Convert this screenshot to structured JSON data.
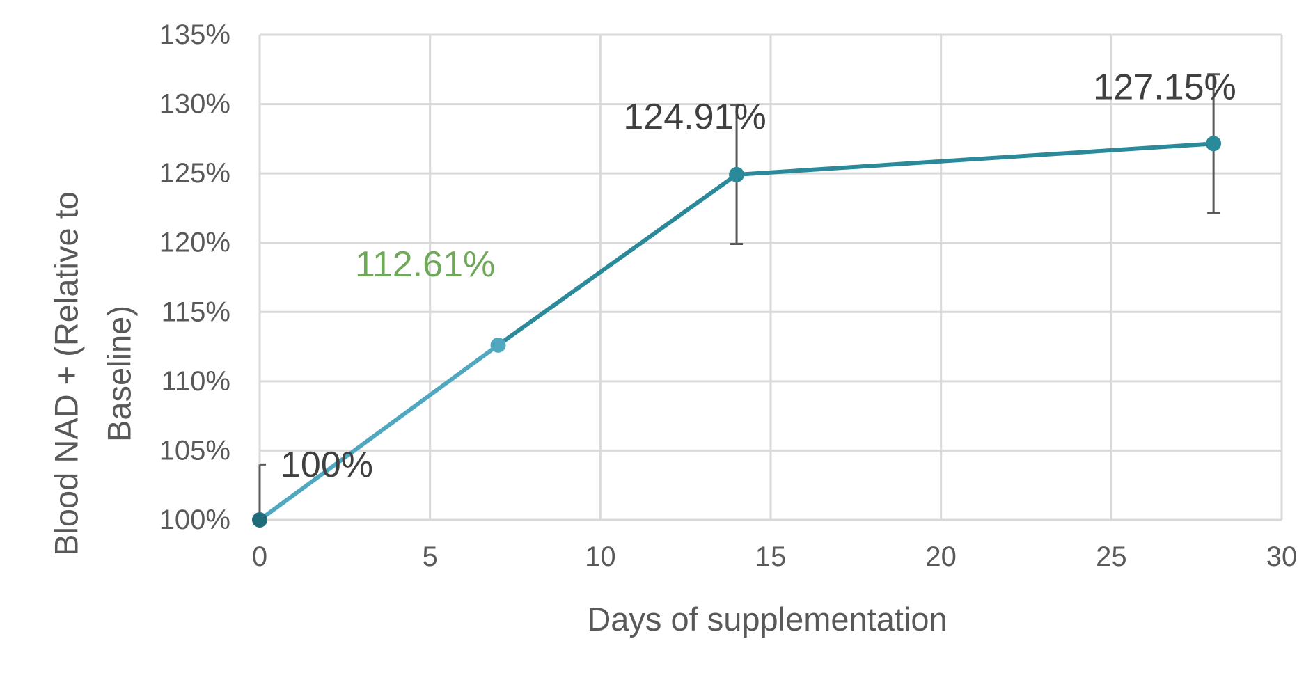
{
  "chart_data": {
    "type": "line",
    "title": "",
    "xlabel": "Days of supplementation",
    "ylabel_lines": [
      "Blood NAD + (Relative to",
      "Baseline)"
    ],
    "xlim": [
      0,
      30
    ],
    "ylim": [
      100,
      135
    ],
    "x_ticks": [
      0,
      5,
      10,
      15,
      20,
      25,
      30
    ],
    "x_tick_labels": [
      "0",
      "5",
      "10",
      "15",
      "20",
      "25",
      "30"
    ],
    "y_ticks": [
      100,
      105,
      110,
      115,
      120,
      125,
      130,
      135
    ],
    "y_tick_labels": [
      "100%",
      "105%",
      "110%",
      "115%",
      "120%",
      "125%",
      "130%",
      "135%"
    ],
    "grid": true,
    "legend": "none",
    "series": [
      {
        "x": [
          0,
          7,
          14,
          28
        ],
        "y": [
          100,
          112.61,
          124.91,
          127.15
        ],
        "error_plus": [
          4,
          0,
          5,
          5
        ],
        "error_minus": [
          0,
          0,
          5,
          5
        ],
        "data_labels": [
          "100%",
          "112.61%",
          "124.91%",
          "127.15%"
        ],
        "segment_colors": [
          "#4fa8c0",
          "#2b8a9a",
          "#2b8a9a"
        ],
        "marker_colors": [
          "#1f6b7a",
          "#4fa8c0",
          "#2b8a9a",
          "#2b8a9a"
        ],
        "label_colors": [
          "#404040",
          "#70a85a",
          "#404040",
          "#404040"
        ]
      }
    ]
  }
}
